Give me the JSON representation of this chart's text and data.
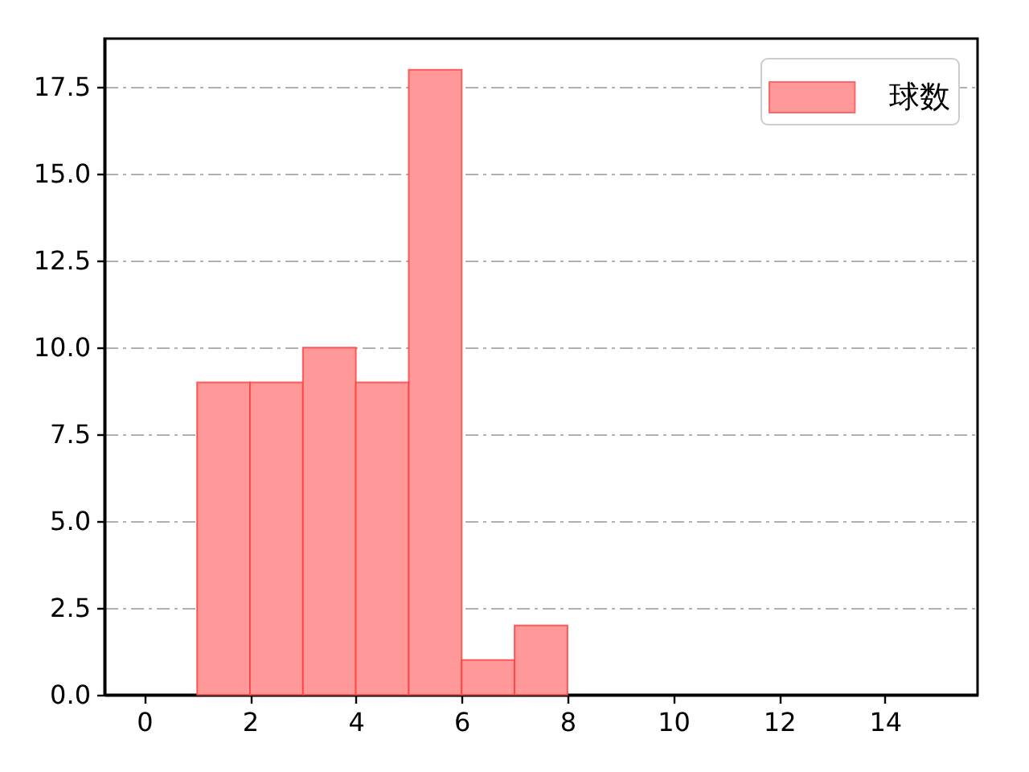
{
  "chart_data": {
    "type": "histogram",
    "bins": [
      1,
      2,
      3,
      4,
      5,
      6,
      7,
      8
    ],
    "series": [
      {
        "name": "球数",
        "color": "#ff9999",
        "values": [
          9,
          9,
          10,
          9,
          18,
          1,
          2
        ]
      }
    ],
    "xlim": [
      -0.75,
      15.75
    ],
    "xticks": [
      0,
      2,
      4,
      6,
      8,
      10,
      12,
      14
    ],
    "ylim": [
      0,
      18.9
    ],
    "yticks": [
      {
        "value": 0,
        "label": "0.0"
      },
      2.5,
      {
        "value": 5,
        "label": "5.0"
      },
      7.5,
      {
        "value": 10,
        "label": "10.0"
      },
      12.5,
      {
        "value": 15,
        "label": "15.0"
      },
      17.5
    ],
    "grid": "y",
    "legend": "top right"
  }
}
